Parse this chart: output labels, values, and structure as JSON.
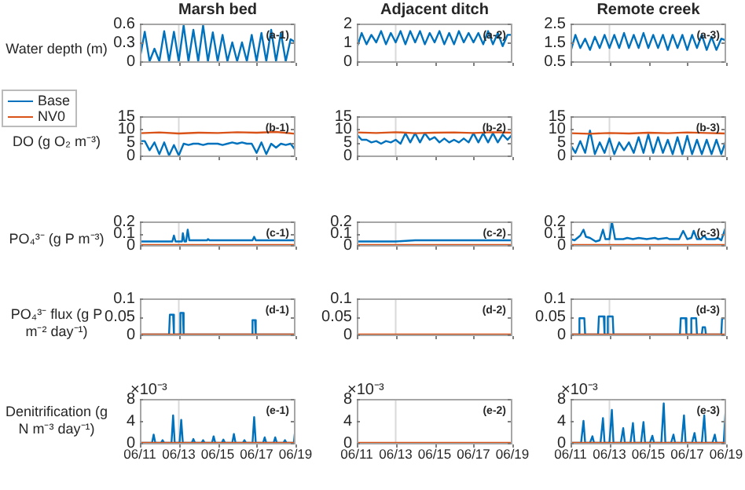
{
  "chart_data": [
    {
      "type": "line",
      "title": "Marsh bed",
      "ylabel": "Water depth (m)",
      "annotations": [
        "(a-1)"
      ],
      "tick_labels": "y",
      "xlim": [
        "--06-11",
        "--06-19"
      ],
      "xticks": [
        "--06-11",
        "--06-13",
        "--06-15",
        "--06-17",
        "--06-19"
      ],
      "ylim": [
        0,
        0.6
      ],
      "yticks": [
        0,
        0.3,
        0.6
      ],
      "ref_lines": [
        {
          "axis": "x",
          "value": "--06-13",
          "color": "#d9d9d9"
        }
      ],
      "x": [
        "--06-11T00:00",
        "--06-11T06:00",
        "--06-11T12:00",
        "--06-11T18:00",
        "--06-12T00:00",
        "--06-12T06:00",
        "--06-12T12:00",
        "--06-12T18:00",
        "--06-13T00:00",
        "--06-13T06:00",
        "--06-13T12:00",
        "--06-13T18:00",
        "--06-14T00:00",
        "--06-14T06:00",
        "--06-14T12:00",
        "--06-14T18:00",
        "--06-15T00:00",
        "--06-15T06:00",
        "--06-15T12:00",
        "--06-15T18:00",
        "--06-16T00:00",
        "--06-16T06:00",
        "--06-16T12:00",
        "--06-16T18:00",
        "--06-17T00:00",
        "--06-17T06:00",
        "--06-17T12:00",
        "--06-17T18:00",
        "--06-18T00:00",
        "--06-18T06:00",
        "--06-18T12:00",
        "--06-18T18:00",
        "--06-19T00:00"
      ],
      "series": [
        {
          "color": "#0072bd",
          "values": [
            0.05,
            0.47,
            0,
            0.2,
            0,
            0.48,
            0,
            0.47,
            0,
            0.57,
            0,
            0.5,
            0,
            0.57,
            0,
            0.46,
            0,
            0.42,
            0,
            0.3,
            0,
            0.3,
            0,
            0.42,
            0,
            0.45,
            0,
            0.5,
            0,
            0.45,
            0,
            0.35,
            0.3
          ]
        }
      ]
    },
    {
      "type": "line",
      "title": "Adjacent ditch",
      "annotations": [
        "(a-2)"
      ],
      "tick_labels": "y",
      "xlim": [
        "--06-11",
        "--06-19"
      ],
      "xticks": [
        "--06-11",
        "--06-13",
        "--06-15",
        "--06-17",
        "--06-19"
      ],
      "ylim": [
        0,
        2
      ],
      "yticks": [
        0,
        1,
        2
      ],
      "ref_lines": [
        {
          "axis": "x",
          "value": "--06-13",
          "color": "#d9d9d9"
        }
      ],
      "x": [
        "--06-11T00:00",
        "--06-11T06:00",
        "--06-11T12:00",
        "--06-11T18:00",
        "--06-12T00:00",
        "--06-12T06:00",
        "--06-12T12:00",
        "--06-12T18:00",
        "--06-13T00:00",
        "--06-13T06:00",
        "--06-13T12:00",
        "--06-13T18:00",
        "--06-14T00:00",
        "--06-14T06:00",
        "--06-14T12:00",
        "--06-14T18:00",
        "--06-15T00:00",
        "--06-15T06:00",
        "--06-15T12:00",
        "--06-15T18:00",
        "--06-16T00:00",
        "--06-16T06:00",
        "--06-16T12:00",
        "--06-16T18:00",
        "--06-17T00:00",
        "--06-17T06:00",
        "--06-17T12:00",
        "--06-17T18:00",
        "--06-18T00:00",
        "--06-18T06:00",
        "--06-18T12:00",
        "--06-18T18:00",
        "--06-19T00:00"
      ],
      "series": [
        {
          "color": "#0072bd",
          "values": [
            0.7,
            1.5,
            0.9,
            1.4,
            1.0,
            1.6,
            0.9,
            1.5,
            1.0,
            1.6,
            0.9,
            1.6,
            1.0,
            1.6,
            0.9,
            1.5,
            1.0,
            1.6,
            0.9,
            1.5,
            0.9,
            1.6,
            1.0,
            1.5,
            1.0,
            1.5,
            0.9,
            1.6,
            0.9,
            1.5,
            0.8,
            1.4,
            1.4
          ]
        }
      ]
    },
    {
      "type": "line",
      "title": "Remote creek",
      "annotations": [
        "(a-3)"
      ],
      "tick_labels": "y",
      "xlim": [
        "--06-11",
        "--06-19"
      ],
      "xticks": [
        "--06-11",
        "--06-13",
        "--06-15",
        "--06-17",
        "--06-19"
      ],
      "ylim": [
        0.5,
        2.5
      ],
      "yticks": [
        0.5,
        1.5,
        2.5
      ],
      "ref_lines": [
        {
          "axis": "x",
          "value": "--06-13",
          "color": "#d9d9d9"
        }
      ],
      "x": [
        "--06-11T00:00",
        "--06-11T06:00",
        "--06-11T12:00",
        "--06-11T18:00",
        "--06-12T00:00",
        "--06-12T06:00",
        "--06-12T12:00",
        "--06-12T18:00",
        "--06-13T00:00",
        "--06-13T06:00",
        "--06-13T12:00",
        "--06-13T18:00",
        "--06-14T00:00",
        "--06-14T06:00",
        "--06-14T12:00",
        "--06-14T18:00",
        "--06-15T00:00",
        "--06-15T06:00",
        "--06-15T12:00",
        "--06-15T18:00",
        "--06-16T00:00",
        "--06-16T06:00",
        "--06-16T12:00",
        "--06-16T18:00",
        "--06-17T00:00",
        "--06-17T06:00",
        "--06-17T12:00",
        "--06-17T18:00",
        "--06-18T00:00",
        "--06-18T06:00",
        "--06-18T12:00",
        "--06-18T18:00",
        "--06-19T00:00"
      ],
      "series": [
        {
          "color": "#0072bd",
          "values": [
            1.0,
            1.9,
            1.2,
            1.7,
            1.1,
            1.8,
            1.2,
            1.9,
            1.2,
            1.9,
            1.2,
            2.0,
            1.2,
            1.9,
            1.2,
            2.0,
            1.2,
            1.9,
            1.2,
            1.9,
            1.1,
            1.9,
            1.2,
            1.9,
            1.1,
            1.9,
            1.2,
            1.9,
            1.1,
            1.8,
            1.1,
            1.7,
            1.6
          ]
        }
      ]
    },
    {
      "type": "line",
      "ylabel": "DO (g O₂ m⁻³)",
      "annotations": [
        "(b-1)"
      ],
      "legend": "left",
      "tick_labels": "y",
      "xlim": [
        "--06-11",
        "--06-19"
      ],
      "xticks": [
        "--06-11",
        "--06-13",
        "--06-15",
        "--06-17",
        "--06-19"
      ],
      "ylim": [
        0,
        15
      ],
      "yticks": [
        0,
        5,
        10,
        15
      ],
      "ref_lines": [
        {
          "axis": "x",
          "value": "--06-13",
          "color": "#d9d9d9"
        }
      ],
      "x": [
        "--06-11T00:00",
        "--06-11T06:00",
        "--06-11T12:00",
        "--06-11T18:00",
        "--06-12T00:00",
        "--06-12T06:00",
        "--06-12T12:00",
        "--06-12T18:00",
        "--06-13T00:00",
        "--06-13T06:00",
        "--06-13T12:00",
        "--06-13T18:00",
        "--06-14T00:00",
        "--06-14T06:00",
        "--06-14T12:00",
        "--06-14T18:00",
        "--06-15T00:00",
        "--06-15T06:00",
        "--06-15T12:00",
        "--06-15T18:00",
        "--06-16T00:00",
        "--06-16T06:00",
        "--06-16T12:00",
        "--06-16T18:00",
        "--06-17T00:00",
        "--06-17T06:00",
        "--06-17T12:00",
        "--06-17T18:00",
        "--06-18T00:00",
        "--06-18T06:00",
        "--06-18T12:00",
        "--06-18T18:00",
        "--06-19T00:00"
      ],
      "series": [
        {
          "name": "Base",
          "color": "#0072bd",
          "values": [
            5.5,
            5.5,
            2,
            5,
            0.5,
            5,
            0,
            4,
            0,
            4.5,
            4,
            4.5,
            4.5,
            4,
            4.5,
            4.5,
            4.5,
            4,
            4.5,
            5,
            4.5,
            5,
            4.5,
            4.5,
            1,
            5,
            0.5,
            4.5,
            3,
            4.5,
            4,
            4.5,
            2
          ]
        },
        {
          "name": "NV0",
          "color": "#d95319",
          "x": [
            "--06-11",
            "--06-12",
            "--06-13",
            "--06-14",
            "--06-15",
            "--06-16",
            "--06-17",
            "--06-18",
            "--06-19"
          ],
          "values": [
            8.5,
            8.8,
            8.4,
            8.7,
            8.6,
            8.9,
            8.7,
            9.0,
            8.3
          ]
        }
      ]
    },
    {
      "type": "line",
      "annotations": [
        "(b-2)"
      ],
      "tick_labels": "y",
      "xlim": [
        "--06-11",
        "--06-19"
      ],
      "xticks": [
        "--06-11",
        "--06-13",
        "--06-15",
        "--06-17",
        "--06-19"
      ],
      "ylim": [
        0,
        15
      ],
      "yticks": [
        0,
        5,
        10,
        15
      ],
      "ref_lines": [
        {
          "axis": "x",
          "value": "--06-13",
          "color": "#d9d9d9"
        }
      ],
      "x": [
        "--06-11T00:00",
        "--06-11T06:00",
        "--06-11T12:00",
        "--06-11T18:00",
        "--06-12T00:00",
        "--06-12T06:00",
        "--06-12T12:00",
        "--06-12T18:00",
        "--06-13T00:00",
        "--06-13T06:00",
        "--06-13T12:00",
        "--06-13T18:00",
        "--06-14T00:00",
        "--06-14T06:00",
        "--06-14T12:00",
        "--06-14T18:00",
        "--06-15T00:00",
        "--06-15T06:00",
        "--06-15T12:00",
        "--06-15T18:00",
        "--06-16T00:00",
        "--06-16T06:00",
        "--06-16T12:00",
        "--06-16T18:00",
        "--06-17T00:00",
        "--06-17T06:00",
        "--06-17T12:00",
        "--06-17T18:00",
        "--06-18T00:00",
        "--06-18T06:00",
        "--06-18T12:00",
        "--06-18T18:00",
        "--06-19T00:00"
      ],
      "series": [
        {
          "color": "#0072bd",
          "values": [
            8,
            6,
            6,
            5,
            5.5,
            4.5,
            5.5,
            5,
            6,
            4.5,
            8.5,
            5,
            8.5,
            5,
            8.5,
            6,
            7,
            5,
            6.5,
            5,
            6,
            5,
            6.5,
            5,
            8.5,
            5,
            8.5,
            5,
            8.5,
            5,
            8,
            6,
            8
          ]
        },
        {
          "color": "#d95319",
          "x": [
            "--06-11",
            "--06-12",
            "--06-13",
            "--06-14",
            "--06-15",
            "--06-16",
            "--06-17",
            "--06-18",
            "--06-19"
          ],
          "values": [
            8.8,
            8.6,
            8.9,
            8.5,
            8.7,
            8.8,
            8.6,
            8.9,
            8.7
          ]
        }
      ]
    },
    {
      "type": "line",
      "annotations": [
        "(b-3)"
      ],
      "tick_labels": "y",
      "xlim": [
        "--06-11",
        "--06-19"
      ],
      "xticks": [
        "--06-11",
        "--06-13",
        "--06-15",
        "--06-17",
        "--06-19"
      ],
      "ylim": [
        0,
        15
      ],
      "yticks": [
        0,
        5,
        10,
        15
      ],
      "ref_lines": [
        {
          "axis": "x",
          "value": "--06-13",
          "color": "#d9d9d9"
        }
      ],
      "x": [
        "--06-11T00:00",
        "--06-11T06:00",
        "--06-11T12:00",
        "--06-11T18:00",
        "--06-12T00:00",
        "--06-12T06:00",
        "--06-12T12:00",
        "--06-12T18:00",
        "--06-13T00:00",
        "--06-13T06:00",
        "--06-13T12:00",
        "--06-13T18:00",
        "--06-14T00:00",
        "--06-14T06:00",
        "--06-14T12:00",
        "--06-14T18:00",
        "--06-15T00:00",
        "--06-15T06:00",
        "--06-15T12:00",
        "--06-15T18:00",
        "--06-16T00:00",
        "--06-16T06:00",
        "--06-16T12:00",
        "--06-16T18:00",
        "--06-17T00:00",
        "--06-17T06:00",
        "--06-17T12:00",
        "--06-17T18:00",
        "--06-18T00:00",
        "--06-18T06:00",
        "--06-18T12:00",
        "--06-18T18:00",
        "--06-19T00:00"
      ],
      "series": [
        {
          "color": "#0072bd",
          "values": [
            4,
            1,
            5.5,
            1,
            9.5,
            0.5,
            5,
            1,
            6.5,
            0.5,
            5,
            2,
            5,
            1,
            7,
            1,
            8,
            1,
            7,
            1,
            6,
            0.5,
            7,
            0.5,
            7.5,
            0.5,
            6,
            0.5,
            6,
            0.5,
            6,
            0.5,
            6
          ]
        },
        {
          "color": "#d95319",
          "x": [
            "--06-11",
            "--06-12",
            "--06-13",
            "--06-14",
            "--06-15",
            "--06-16",
            "--06-17",
            "--06-18",
            "--06-19"
          ],
          "values": [
            8.5,
            8.3,
            8.6,
            8.4,
            8.7,
            8.5,
            8.8,
            8.6,
            8.4
          ]
        }
      ]
    },
    {
      "type": "line",
      "ylabel": "PO₄³⁻ (g P m⁻³)",
      "annotations": [
        "(c-1)"
      ],
      "tick_labels": "y",
      "xlim": [
        "--06-11",
        "--06-19"
      ],
      "xticks": [
        "--06-11",
        "--06-13",
        "--06-15",
        "--06-17",
        "--06-19"
      ],
      "ylim": [
        0,
        0.2
      ],
      "yticks": [
        0,
        0.1,
        0.2
      ],
      "ref_lines": [
        {
          "axis": "x",
          "value": "--06-13",
          "color": "#d9d9d9"
        }
      ],
      "series": [
        {
          "color": "#0072bd",
          "x": [
            "--06-11T00:00",
            "--06-12T16:00",
            "--06-12T18:00",
            "--06-12T20:00",
            "--06-13T04:00",
            "--06-13T05:00",
            "--06-13T07:00",
            "--06-13T09:00",
            "--06-13T11:00",
            "--06-13T13:00",
            "--06-14T11:00",
            "--06-14T12:00",
            "--06-14T14:00",
            "--06-16T19:00",
            "--06-16T21:00",
            "--06-16T23:00",
            "--06-19T00:00"
          ],
          "values": [
            0.03,
            0.03,
            0.08,
            0.03,
            0.03,
            0.1,
            0.03,
            0.03,
            0.13,
            0.04,
            0.04,
            0.05,
            0.04,
            0.04,
            0.07,
            0.04,
            0.04
          ]
        },
        {
          "color": "#d95319",
          "x": [
            "--06-11",
            "--06-19"
          ],
          "values": [
            0,
            0
          ]
        }
      ]
    },
    {
      "type": "line",
      "annotations": [
        "(c-2)"
      ],
      "tick_labels": "y",
      "xlim": [
        "--06-11",
        "--06-19"
      ],
      "xticks": [
        "--06-11",
        "--06-13",
        "--06-15",
        "--06-17",
        "--06-19"
      ],
      "ylim": [
        0,
        0.2
      ],
      "yticks": [
        0,
        0.1,
        0.2
      ],
      "ref_lines": [
        {
          "axis": "x",
          "value": "--06-13",
          "color": "#d9d9d9"
        }
      ],
      "series": [
        {
          "color": "#0072bd",
          "x": [
            "--06-11",
            "--06-12",
            "--06-13",
            "--06-14",
            "--06-15",
            "--06-16",
            "--06-17",
            "--06-18",
            "--06-19"
          ],
          "values": [
            0.03,
            0.03,
            0.03,
            0.04,
            0.04,
            0.04,
            0.04,
            0.04,
            0.04
          ]
        },
        {
          "color": "#d95319",
          "x": [
            "--06-11",
            "--06-19"
          ],
          "values": [
            0,
            0
          ]
        }
      ]
    },
    {
      "type": "line",
      "annotations": [
        "(c-3)"
      ],
      "tick_labels": "y",
      "xlim": [
        "--06-11",
        "--06-19"
      ],
      "xticks": [
        "--06-11",
        "--06-13",
        "--06-15",
        "--06-17",
        "--06-19"
      ],
      "ylim": [
        0,
        0.2
      ],
      "yticks": [
        0,
        0.1,
        0.2
      ],
      "ref_lines": [
        {
          "axis": "x",
          "value": "--06-13",
          "color": "#d9d9d9"
        }
      ],
      "series": [
        {
          "color": "#0072bd",
          "x": [
            "--06-11T00:00",
            "--06-11T05:00",
            "--06-11T12:00",
            "--06-11T16:00",
            "--06-11T19:00",
            "--06-12T00:00",
            "--06-12T07:00",
            "--06-12T12:00",
            "--06-12T16:00",
            "--06-12T19:00",
            "--06-13T00:00",
            "--06-13T03:00",
            "--06-13T07:00",
            "--06-13T17:00",
            "--06-13T22:00",
            "--06-14T05:00",
            "--06-14T12:00",
            "--06-14T22:00",
            "--06-15T08:00",
            "--06-15T12:00",
            "--06-15T23:00",
            "--06-16T02:00",
            "--06-16T14:00",
            "--06-16T19:00",
            "--06-17T00:00",
            "--06-17T05:00",
            "--06-17T08:00",
            "--06-17T12:00",
            "--06-17T17:00",
            "--06-17T21:00",
            "--06-18T00:00",
            "--06-18T10:00",
            "--06-18T14:00",
            "--06-18T18:00",
            "--06-18T23:00"
          ],
          "values": [
            0.05,
            0.04,
            0.08,
            0.13,
            0.07,
            0.06,
            0.03,
            0.04,
            0.13,
            0.05,
            0.05,
            0.2,
            0.05,
            0.05,
            0.06,
            0.05,
            0.06,
            0.05,
            0.06,
            0.05,
            0.06,
            0.05,
            0.05,
            0.12,
            0.05,
            0.06,
            0.12,
            0.05,
            0.05,
            0.08,
            0.05,
            0.05,
            0.06,
            0.04,
            0.14
          ]
        },
        {
          "color": "#d95319",
          "x": [
            "--06-11",
            "--06-19"
          ],
          "values": [
            0,
            0
          ]
        }
      ]
    },
    {
      "type": "line",
      "ylabel": "PO₄³⁻ flux (g P m⁻² day⁻¹)",
      "annotations": [
        "(d-1)"
      ],
      "tick_labels": "y",
      "xlim": [
        "--06-11",
        "--06-19"
      ],
      "xticks": [
        "--06-11",
        "--06-13",
        "--06-15",
        "--06-17",
        "--06-19"
      ],
      "ylim": [
        0,
        0.1
      ],
      "yticks": [
        0,
        0.05,
        0.1
      ],
      "ref_lines": [
        {
          "axis": "x",
          "value": "--06-13",
          "color": "#d9d9d9"
        }
      ],
      "series": [
        {
          "color": "#0072bd",
          "x": [
            "--06-11T00:00",
            "--06-12T12:00",
            "--06-12T13:00",
            "--06-12T17:00",
            "--06-12T18:00",
            "--06-13T01:00",
            "--06-13T02:00",
            "--06-13T05:00",
            "--06-13T06:00",
            "--06-16T18:00",
            "--06-16T19:00",
            "--06-16T22:00",
            "--06-16T23:00",
            "--06-19T00:00"
          ],
          "values": [
            0,
            0,
            0.055,
            0.055,
            0,
            0,
            0.06,
            0.06,
            0,
            0,
            0.04,
            0.04,
            0,
            0
          ]
        },
        {
          "color": "#d95319",
          "x": [
            "--06-11",
            "--06-19"
          ],
          "values": [
            0,
            0
          ]
        }
      ]
    },
    {
      "type": "line",
      "annotations": [
        "(d-2)"
      ],
      "tick_labels": "y",
      "xlim": [
        "--06-11",
        "--06-19"
      ],
      "xticks": [
        "--06-11",
        "--06-13",
        "--06-15",
        "--06-17",
        "--06-19"
      ],
      "ylim": [
        0,
        0.1
      ],
      "yticks": [
        0,
        0.05,
        0.1
      ],
      "ref_lines": [
        {
          "axis": "x",
          "value": "--06-13",
          "color": "#d9d9d9"
        }
      ],
      "series": [
        {
          "color": "#d95319",
          "x": [
            "--06-11",
            "--06-19"
          ],
          "values": [
            0,
            0
          ]
        }
      ]
    },
    {
      "type": "line",
      "annotations": [
        "(d-3)"
      ],
      "tick_labels": "y",
      "xlim": [
        "--06-11",
        "--06-19"
      ],
      "xticks": [
        "--06-11",
        "--06-13",
        "--06-15",
        "--06-17",
        "--06-19"
      ],
      "ylim": [
        0,
        0.1
      ],
      "yticks": [
        0,
        0.05,
        0.1
      ],
      "ref_lines": [
        {
          "axis": "x",
          "value": "--06-13",
          "color": "#d9d9d9"
        }
      ],
      "series": [
        {
          "color": "#0072bd",
          "x": [
            "--06-11T00:00",
            "--06-11T10:00",
            "--06-11T11:00",
            "--06-11T17:00",
            "--06-11T18:00",
            "--06-12T10:00",
            "--06-12T11:00",
            "--06-12T17:00",
            "--06-12T18:00",
            "--06-12T21:00",
            "--06-12T22:00",
            "--06-13T04:00",
            "--06-13T05:00",
            "--06-16T15:00",
            "--06-16T16:00",
            "--06-16T22:00",
            "--06-16T23:00",
            "--06-17T04:00",
            "--06-17T05:00",
            "--06-17T11:00",
            "--06-17T12:00",
            "--06-17T18:00",
            "--06-17T19:00",
            "--06-17T22:00",
            "--06-17T23:00",
            "--06-18T18:00",
            "--06-18T19:00",
            "--06-19T00:00"
          ],
          "values": [
            0,
            0,
            0.045,
            0.045,
            0,
            0,
            0.05,
            0.05,
            0,
            0,
            0.05,
            0.05,
            0,
            0,
            0.045,
            0.045,
            0,
            0,
            0.045,
            0.045,
            0,
            0,
            0.02,
            0.02,
            0,
            0,
            0.045,
            0.045
          ]
        },
        {
          "color": "#d95319",
          "x": [
            "--06-11",
            "--06-19"
          ],
          "values": [
            0,
            0
          ]
        }
      ]
    },
    {
      "type": "line",
      "ylabel": "Denitrification (g N m⁻³ day⁻¹)",
      "annotations": [
        "(e-1)",
        "×10⁻³"
      ],
      "xlim": [
        "--06-11",
        "--06-19"
      ],
      "xticks": [
        {
          "value": "--06-11",
          "label": "06/11"
        },
        {
          "value": "--06-13",
          "label": "06/13"
        },
        {
          "value": "--06-15",
          "label": "06/15"
        },
        {
          "value": "--06-17",
          "label": "06/17"
        },
        {
          "value": "--06-19",
          "label": "06/19"
        }
      ],
      "ylim": [
        0,
        8
      ],
      "yticks": [
        0,
        4,
        8
      ],
      "ref_lines": [
        {
          "axis": "x",
          "value": "--06-13",
          "color": "#d9d9d9"
        }
      ],
      "series": [
        {
          "color": "#0072bd",
          "x": [
            "--06-11T00:00",
            "--06-11T15:00",
            "--06-11T17:00",
            "--06-11T19:00",
            "--06-12T02:00",
            "--06-12T04:00",
            "--06-12T06:00",
            "--06-12T15:00",
            "--06-12T17:00",
            "--06-12T19:00",
            "--06-13T01:00",
            "--06-13T03:00",
            "--06-13T05:00",
            "--06-13T16:00",
            "--06-13T18:00",
            "--06-13T20:00",
            "--06-14T04:00",
            "--06-14T06:00",
            "--06-14T08:00",
            "--06-14T17:00",
            "--06-14T19:00",
            "--06-14T21:00",
            "--06-15T05:00",
            "--06-15T07:00",
            "--06-15T09:00",
            "--06-15T18:00",
            "--06-15T20:00",
            "--06-15T22:00",
            "--06-16T07:00",
            "--06-16T09:00",
            "--06-16T11:00",
            "--06-16T19:00",
            "--06-16T21:00",
            "--06-16T23:00",
            "--06-17T08:00",
            "--06-17T10:00",
            "--06-17T12:00",
            "--06-17T21:00",
            "--06-17T23:00",
            "--06-18T01:00",
            "--06-18T09:00",
            "--06-18T11:00",
            "--06-18T13:00",
            "--06-18T22:00",
            "--06-19T00:00"
          ],
          "values": [
            0,
            0,
            1.5,
            0,
            0,
            0.5,
            0,
            0,
            5,
            0,
            0,
            4.2,
            0,
            0,
            0.7,
            0,
            0,
            0.5,
            0,
            0,
            1.2,
            0,
            0,
            0.6,
            0,
            0,
            1.6,
            0,
            0,
            0.5,
            0,
            0,
            4.7,
            0,
            0,
            1,
            0,
            0,
            1,
            0,
            0,
            0.5,
            0,
            0,
            3
          ]
        },
        {
          "color": "#d95319",
          "x": [
            "--06-11",
            "--06-19"
          ],
          "values": [
            0,
            0
          ]
        }
      ]
    },
    {
      "type": "line",
      "annotations": [
        "(e-2)",
        "×10⁻³"
      ],
      "xlim": [
        "--06-11",
        "--06-19"
      ],
      "xticks": [
        {
          "value": "--06-11",
          "label": "06/11"
        },
        {
          "value": "--06-13",
          "label": "06/13"
        },
        {
          "value": "--06-15",
          "label": "06/15"
        },
        {
          "value": "--06-17",
          "label": "06/17"
        },
        {
          "value": "--06-19",
          "label": "06/19"
        }
      ],
      "ylim": [
        0,
        8
      ],
      "yticks": [
        0,
        4,
        8
      ],
      "ref_lines": [
        {
          "axis": "x",
          "value": "--06-13",
          "color": "#d9d9d9"
        }
      ],
      "series": [
        {
          "color": "#d95319",
          "x": [
            "--06-11",
            "--06-19"
          ],
          "values": [
            0,
            0
          ]
        }
      ]
    },
    {
      "type": "line",
      "annotations": [
        "(e-3)",
        "×10⁻³"
      ],
      "xlim": [
        "--06-11",
        "--06-19"
      ],
      "xticks": [
        {
          "value": "--06-11",
          "label": "06/11"
        },
        {
          "value": "--06-13",
          "label": "06/13"
        },
        {
          "value": "--06-15",
          "label": "06/15"
        },
        {
          "value": "--06-17",
          "label": "06/17"
        },
        {
          "value": "--06-19",
          "label": "06/19"
        }
      ],
      "ylim": [
        0,
        8
      ],
      "yticks": [
        0,
        4,
        8
      ],
      "ref_lines": [
        {
          "axis": "x",
          "value": "--06-13",
          "color": "#d9d9d9"
        }
      ],
      "series": [
        {
          "color": "#0072bd",
          "x": [
            "--06-11T00:00",
            "--06-11T13:00",
            "--06-11T16:00",
            "--06-11T18:00",
            "--06-12T00:00",
            "--06-12T03:00",
            "--06-12T05:00",
            "--06-12T13:00",
            "--06-12T16:00",
            "--06-12T18:00",
            "--06-13T00:00",
            "--06-13T03:00",
            "--06-13T05:00",
            "--06-13T14:00",
            "--06-13T17:00",
            "--06-13T19:00",
            "--06-14T02:00",
            "--06-14T05:00",
            "--06-14T07:00",
            "--06-14T15:00",
            "--06-14T18:00",
            "--06-14T20:00",
            "--06-15T02:00",
            "--06-15T05:00",
            "--06-15T07:00",
            "--06-15T16:00",
            "--06-15T19:00",
            "--06-15T21:00",
            "--06-16T04:00",
            "--06-16T07:00",
            "--06-16T09:00",
            "--06-16T17:00",
            "--06-16T20:00",
            "--06-16T22:00",
            "--06-17T06:00",
            "--06-17T09:00",
            "--06-17T11:00",
            "--06-17T18:00",
            "--06-17T21:00",
            "--06-17T23:00",
            "--06-18T07:00",
            "--06-18T10:00",
            "--06-18T12:00",
            "--06-18T21:00",
            "--06-19T00:00"
          ],
          "values": [
            0,
            0,
            4,
            0,
            0,
            1.2,
            0,
            0,
            4.5,
            0,
            0,
            6,
            0,
            0,
            2.7,
            0,
            0,
            3.6,
            0,
            0,
            3.8,
            0,
            0,
            1.3,
            0,
            0,
            7.2,
            0,
            0,
            1.5,
            0,
            0,
            5,
            0,
            0,
            1.8,
            0,
            0,
            5,
            0,
            0,
            1.5,
            0,
            0,
            7.5
          ]
        },
        {
          "color": "#d95319",
          "x": [
            "--06-11",
            "--06-19"
          ],
          "values": [
            0,
            0
          ]
        }
      ]
    }
  ]
}
